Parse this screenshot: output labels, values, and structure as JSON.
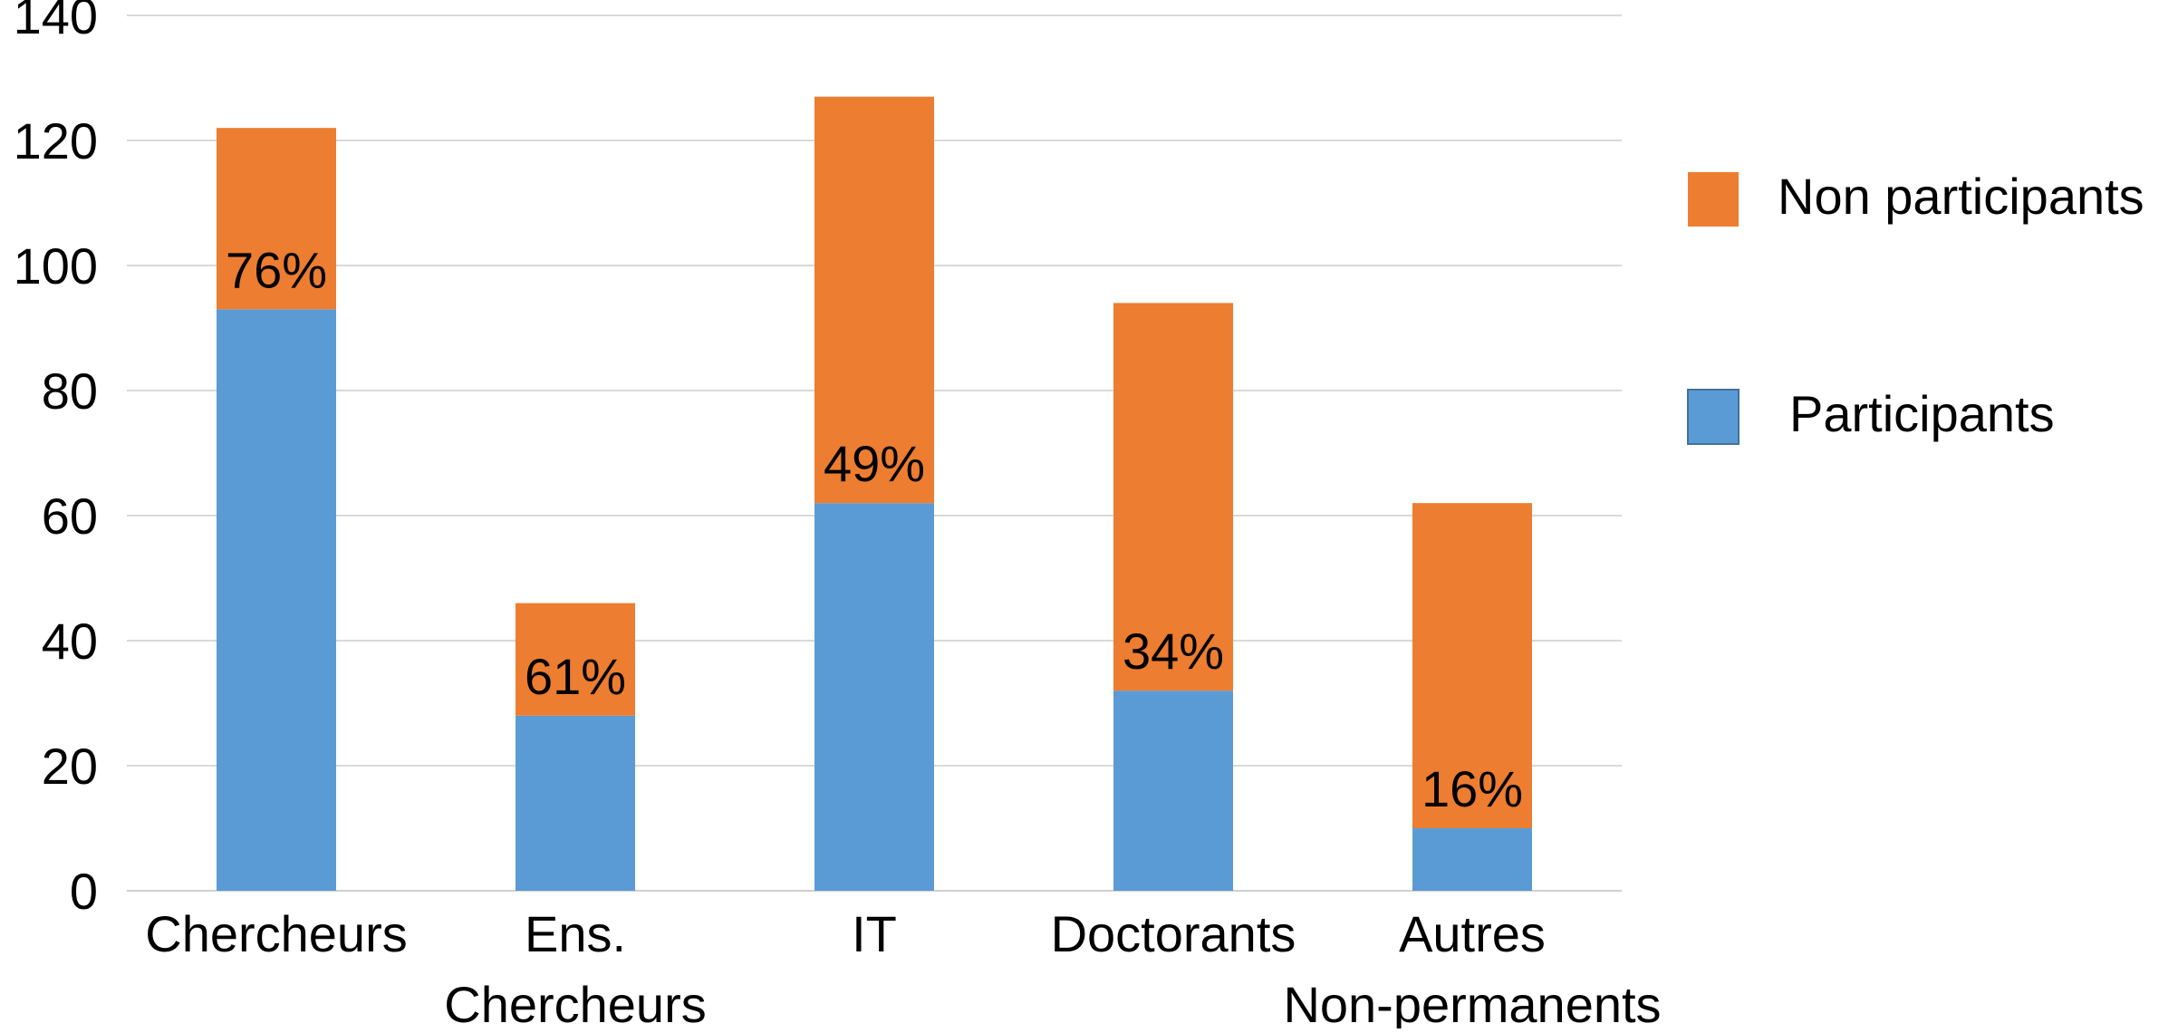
{
  "chart_data": {
    "type": "bar",
    "stacked": true,
    "categories": [
      [
        "Chercheurs"
      ],
      [
        "Ens.",
        "Chercheurs"
      ],
      [
        "IT"
      ],
      [
        "Doctorants"
      ],
      [
        "Autres",
        "Non-permanents"
      ]
    ],
    "series": [
      {
        "name": "Participants",
        "color": "#5b9bd5",
        "values": [
          93,
          28,
          62,
          32,
          10
        ]
      },
      {
        "name": "Non participants",
        "color": "#ed7d31",
        "values": [
          29,
          18,
          65,
          62,
          52
        ]
      }
    ],
    "data_labels": [
      "76%",
      "61%",
      "49%",
      "34%",
      "16%"
    ],
    "ylim": [
      0,
      140
    ],
    "yticks": [
      0,
      20,
      40,
      60,
      80,
      100,
      120,
      140
    ],
    "grid": true,
    "legend": {
      "placement": "right",
      "entries": [
        "Non participants",
        "Participants"
      ]
    }
  }
}
